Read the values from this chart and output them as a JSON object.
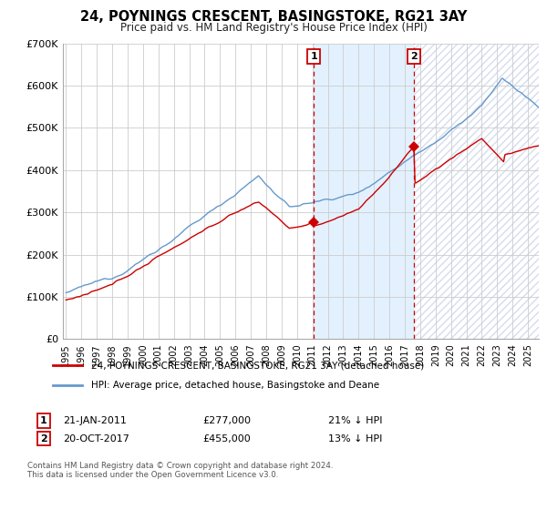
{
  "title": "24, POYNINGS CRESCENT, BASINGSTOKE, RG21 3AY",
  "subtitle": "Price paid vs. HM Land Registry's House Price Index (HPI)",
  "ylim": [
    0,
    700000
  ],
  "yticks": [
    0,
    100000,
    200000,
    300000,
    400000,
    500000,
    600000,
    700000
  ],
  "ytick_labels": [
    "£0",
    "£100K",
    "£200K",
    "£300K",
    "£400K",
    "£500K",
    "£600K",
    "£700K"
  ],
  "hpi_color": "#6699cc",
  "price_color": "#cc0000",
  "background_color": "#ffffff",
  "grid_color": "#cccccc",
  "shade_color": "#ddeeff",
  "marker1_idx": 193,
  "marker1_price": 277000,
  "marker2_idx": 271,
  "marker2_price": 455000,
  "legend1": "24, POYNINGS CRESCENT, BASINGSTOKE, RG21 3AY (detached house)",
  "legend2": "HPI: Average price, detached house, Basingstoke and Deane",
  "ann1_date": "21-JAN-2011",
  "ann1_price_str": "£277,000",
  "ann1_hpi": "21% ↓ HPI",
  "ann2_date": "20-OCT-2017",
  "ann2_price_str": "£455,000",
  "ann2_hpi": "13% ↓ HPI",
  "footnote": "Contains HM Land Registry data © Crown copyright and database right 2024.\nThis data is licensed under the Open Government Licence v3.0.",
  "start_year": 1995,
  "end_year": 2025,
  "n_months": 372
}
